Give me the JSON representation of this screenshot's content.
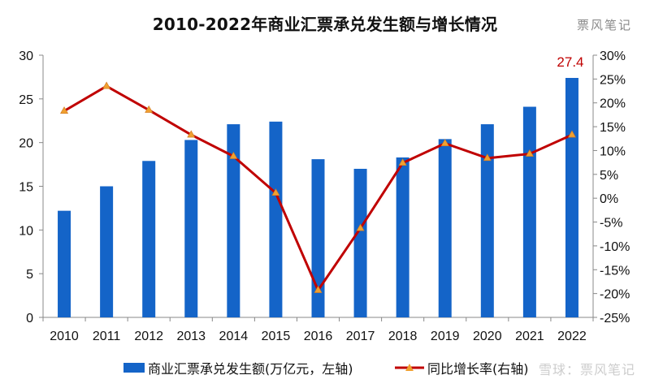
{
  "title": "2010-2022年商业汇票承兑发生额与增长情况",
  "watermark_top": "票风笔记",
  "watermark_bottom": "雪球：票风笔记",
  "colors": {
    "bar": "#1464c8",
    "line": "#c00000",
    "marker": "#f0a030",
    "highlight_label": "#c00000"
  },
  "legend": {
    "bar_label": "商业汇票承兑发生额(万亿元，左轴)",
    "line_label": "同比增长率(右轴)",
    "position": "bottom"
  },
  "chart_data": {
    "type": "bar+line",
    "categories": [
      "2010",
      "2011",
      "2012",
      "2013",
      "2014",
      "2015",
      "2016",
      "2017",
      "2018",
      "2019",
      "2020",
      "2021",
      "2022"
    ],
    "series": [
      {
        "name": "商业汇票承兑发生额(万亿元，左轴)",
        "type": "bar",
        "axis": "left",
        "values": [
          12.2,
          15.0,
          17.9,
          20.3,
          22.1,
          22.4,
          18.1,
          17.0,
          18.3,
          20.4,
          22.1,
          24.1,
          27.4
        ]
      },
      {
        "name": "同比增长率(右轴)",
        "type": "line",
        "axis": "right",
        "values": [
          18.3,
          23.5,
          18.5,
          13.3,
          8.8,
          1.1,
          -19.3,
          -6.3,
          7.4,
          11.5,
          8.4,
          9.3,
          13.3
        ]
      }
    ],
    "data_labels": [
      {
        "category": "2022",
        "series": "bar",
        "text": "27.4"
      }
    ],
    "y_left": {
      "min": 0,
      "max": 30,
      "step": 5,
      "ticks": [
        "0",
        "5",
        "10",
        "15",
        "20",
        "25",
        "30"
      ]
    },
    "y_right": {
      "min": -25,
      "max": 30,
      "step": 5,
      "ticks": [
        "-25%",
        "-20%",
        "-15%",
        "-10%",
        "-5%",
        "0%",
        "5%",
        "10%",
        "15%",
        "20%",
        "25%",
        "30%"
      ]
    },
    "grid": false
  }
}
